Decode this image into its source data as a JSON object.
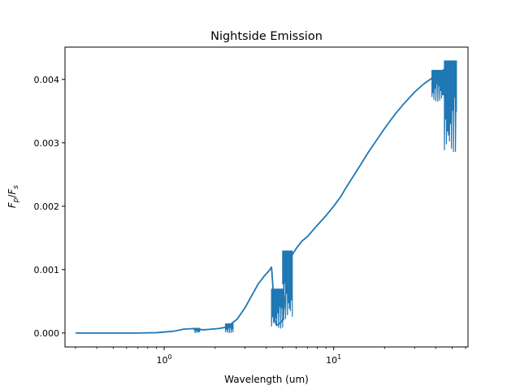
{
  "chart_data": {
    "type": "line",
    "title": "Nightside Emission",
    "xlabel": "Wavelength (um)",
    "ylabel": {
      "base": "F",
      "sub1": "p",
      "sep": "/",
      "base2": "F",
      "sub2": "s"
    },
    "xscale": "log",
    "xlim": [
      0.26,
      62
    ],
    "ylim": [
      -0.00022,
      0.00451
    ],
    "x_major_ticks": [
      {
        "value": 1,
        "base": "10",
        "exp": "0"
      },
      {
        "value": 10,
        "base": "10",
        "exp": "1"
      }
    ],
    "y_ticks": [
      {
        "value": 0.0,
        "label": "0.000"
      },
      {
        "value": 0.001,
        "label": "0.001"
      },
      {
        "value": 0.002,
        "label": "0.002"
      },
      {
        "value": 0.003,
        "label": "0.003"
      },
      {
        "value": 0.004,
        "label": "0.004"
      }
    ],
    "line_color": "#1f77b4",
    "grid": false,
    "series": [
      {
        "smooth": [
          [
            0.3,
            0.0
          ],
          [
            0.5,
            0.0
          ],
          [
            0.7,
            0.0
          ],
          [
            0.9,
            5e-06
          ],
          [
            1.0,
            1.5e-05
          ],
          [
            1.15,
            3e-05
          ],
          [
            1.3,
            6e-05
          ],
          [
            1.5,
            7e-05
          ],
          [
            1.7,
            5e-05
          ],
          [
            1.9,
            6e-05
          ],
          [
            2.1,
            7e-05
          ],
          [
            2.3,
            9e-05
          ],
          [
            2.5,
            0.00015
          ],
          [
            2.7,
            0.00022
          ],
          [
            3.0,
            0.0004
          ],
          [
            3.3,
            0.0006
          ],
          [
            3.6,
            0.00078
          ],
          [
            3.9,
            0.0009
          ],
          [
            4.15,
            0.00098
          ],
          [
            4.3,
            0.00104
          ],
          [
            4.4,
            0.00065
          ],
          [
            4.5,
            0.0002
          ],
          [
            4.6,
            0.00012
          ],
          [
            4.8,
            0.00015
          ],
          [
            5.0,
            0.0002
          ],
          [
            5.3,
            0.0008
          ],
          [
            5.6,
            0.0012
          ],
          [
            6.0,
            0.00133
          ],
          [
            6.5,
            0.00145
          ],
          [
            7.0,
            0.00152
          ],
          [
            8.0,
            0.0017
          ],
          [
            9.0,
            0.00185
          ],
          [
            10.0,
            0.002
          ],
          [
            11.0,
            0.00215
          ],
          [
            12.0,
            0.00232
          ],
          [
            14.0,
            0.0026
          ],
          [
            16.0,
            0.00285
          ],
          [
            18.0,
            0.00305
          ],
          [
            20.0,
            0.00323
          ],
          [
            23.0,
            0.00345
          ],
          [
            26.0,
            0.00362
          ],
          [
            30.0,
            0.0038
          ],
          [
            34.0,
            0.00393
          ],
          [
            38.0,
            0.00402
          ],
          [
            42.0,
            0.0041
          ],
          [
            46.0,
            0.00418
          ],
          [
            50.0,
            0.00425
          ],
          [
            53.0,
            0.00428
          ]
        ],
        "bands": [
          {
            "x": [
              1.5,
              1.62
            ],
            "low": 0.0,
            "high": 8e-05
          },
          {
            "x": [
              2.3,
              2.55
            ],
            "low": 0.0,
            "high": 0.00015
          },
          {
            "x": [
              4.3,
              5.0
            ],
            "low": 7e-05,
            "high": 0.0007
          },
          {
            "x": [
              5.0,
              5.7
            ],
            "low": 0.0002,
            "high": 0.0013
          },
          {
            "x": [
              38.0,
              45.0
            ],
            "low": 0.00365,
            "high": 0.00415
          },
          {
            "x": [
              45.0,
              53.0
            ],
            "low": 0.00285,
            "high": 0.0043
          }
        ]
      }
    ]
  }
}
